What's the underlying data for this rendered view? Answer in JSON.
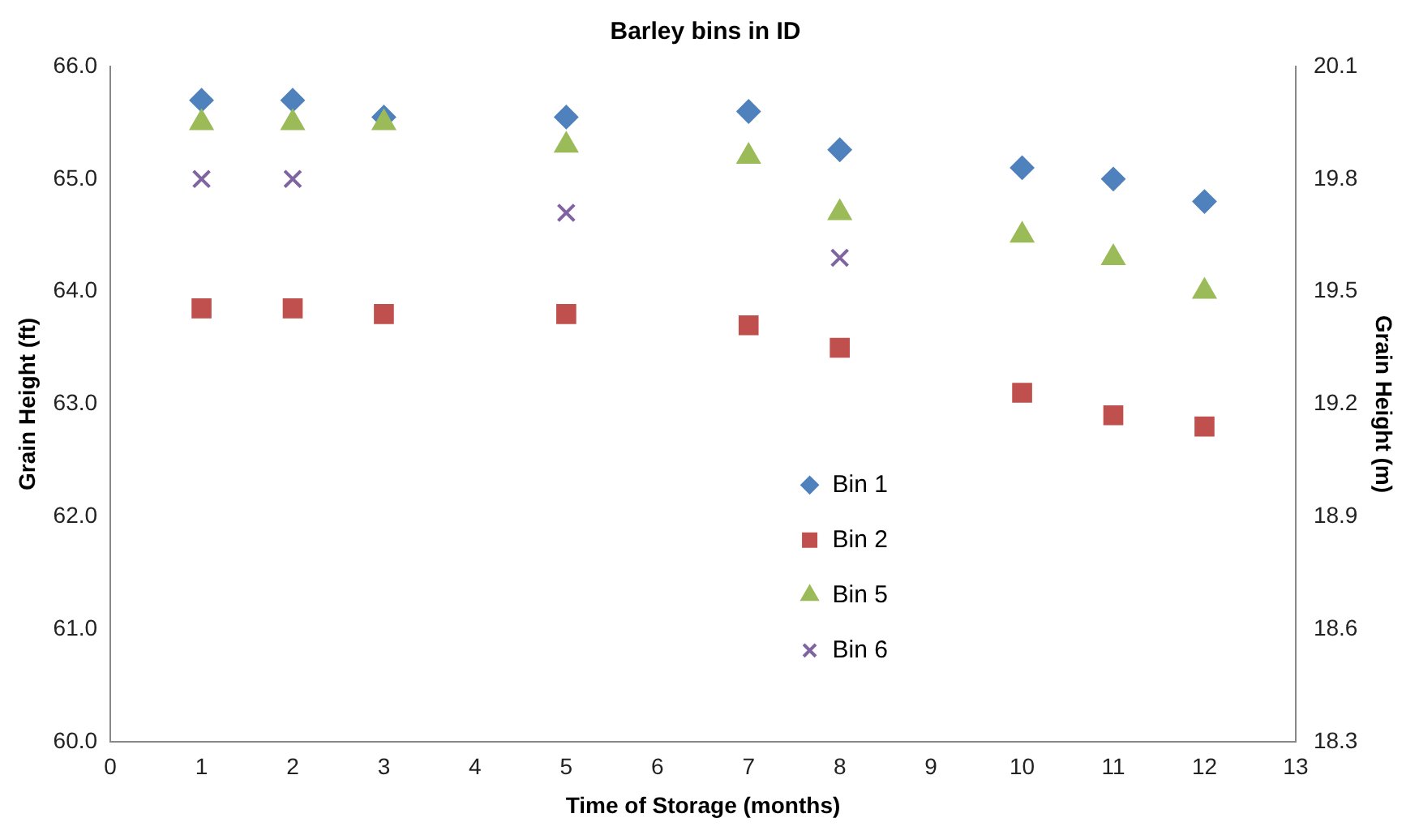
{
  "chart_data": {
    "type": "scatter",
    "title": "Barley bins in ID",
    "xlabel": "Time of Storage (months)",
    "ylabel": "Grain Height (ft)",
    "y2label": "Grain Height (m)",
    "xlim": [
      0,
      13
    ],
    "xticks": [
      0,
      1,
      2,
      3,
      4,
      5,
      6,
      7,
      8,
      9,
      10,
      11,
      12,
      13
    ],
    "ylim": [
      60,
      66
    ],
    "yticks": [
      {
        "value": 60,
        "label": "60.0"
      },
      {
        "value": 61,
        "label": "61.0"
      },
      {
        "value": 62,
        "label": "62.0"
      },
      {
        "value": 63,
        "label": "63.0"
      },
      {
        "value": 64,
        "label": "64.0"
      },
      {
        "value": 65,
        "label": "65.0"
      },
      {
        "value": 66,
        "label": "66.0"
      }
    ],
    "y2lim": [
      18.3,
      20.1
    ],
    "y2ticks": [
      18.3,
      18.6,
      18.9,
      19.2,
      19.5,
      19.8,
      20.1
    ],
    "grid": false,
    "legend": "bottom center",
    "series": [
      {
        "name": "Bin 1",
        "color": "#4f81bd",
        "marker": "diamond",
        "x": [
          1,
          2,
          3,
          5,
          7,
          8,
          10,
          11,
          12
        ],
        "values": [
          65.7,
          65.7,
          65.55,
          65.55,
          65.6,
          65.26,
          65.1,
          65.0,
          64.8
        ]
      },
      {
        "name": "Bin 2",
        "color": "#c0504d",
        "marker": "square",
        "x": [
          1,
          2,
          3,
          5,
          7,
          8,
          10,
          11,
          12
        ],
        "values": [
          63.85,
          63.85,
          63.8,
          63.8,
          63.7,
          63.5,
          63.1,
          62.9,
          62.8
        ]
      },
      {
        "name": "Bin 5",
        "color": "#9bbb59",
        "marker": "triangle",
        "x": [
          1,
          2,
          3,
          5,
          7,
          8,
          10,
          11,
          12
        ],
        "values": [
          65.5,
          65.5,
          65.5,
          65.3,
          65.2,
          64.7,
          64.5,
          64.3,
          64.0
        ]
      },
      {
        "name": "Bin 6",
        "color": "#8064a2",
        "marker": "cross",
        "x": [
          1,
          2,
          5,
          8
        ],
        "values": [
          65.0,
          65.0,
          64.7,
          64.3
        ]
      }
    ]
  }
}
